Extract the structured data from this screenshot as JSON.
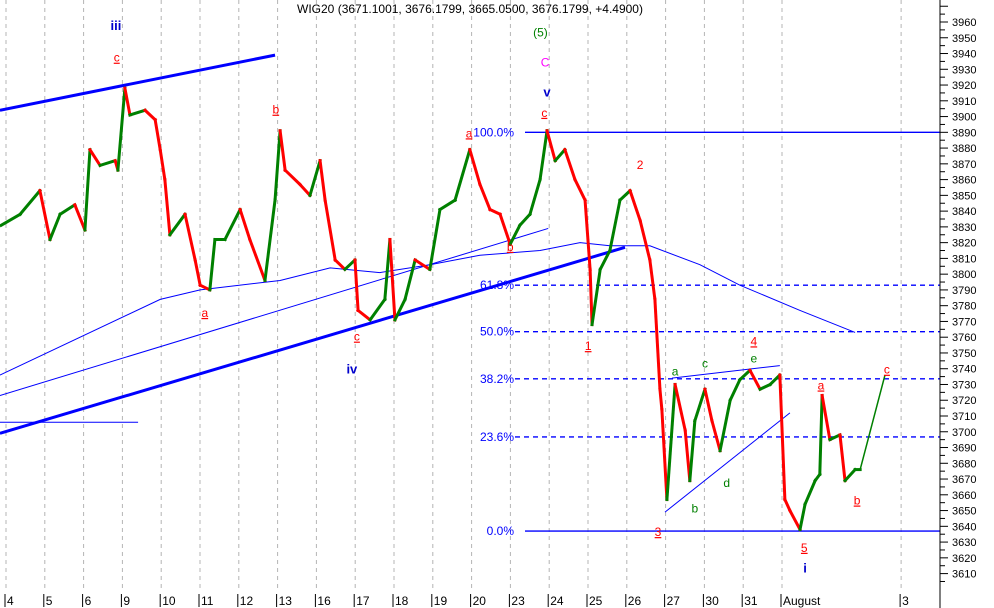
{
  "chart_data": {
    "type": "line",
    "title": "WIG20 (3671.1001, 3676.1799, 3665.0500, 3676.1799, +4.4900)",
    "x_tick_labels": [
      "4",
      "5",
      "6",
      "9",
      "10",
      "11",
      "12",
      "13",
      "16",
      "17",
      "18",
      "19",
      "20",
      "23",
      "24",
      "25",
      "26",
      "27",
      "30",
      "31",
      "August",
      "3"
    ],
    "x_tick_positions": [
      0,
      1,
      2,
      3,
      4,
      5,
      6,
      7,
      8,
      9,
      10,
      11,
      12,
      13,
      14,
      15,
      16,
      17,
      18,
      19,
      20,
      23.07
    ],
    "ylim": [
      3605,
      3975
    ],
    "y_ticks": [
      3610,
      3620,
      3630,
      3640,
      3650,
      3660,
      3670,
      3680,
      3690,
      3700,
      3710,
      3720,
      3730,
      3740,
      3750,
      3760,
      3770,
      3780,
      3790,
      3800,
      3810,
      3820,
      3830,
      3840,
      3850,
      3860,
      3870,
      3880,
      3890,
      3900,
      3910,
      3920,
      3930,
      3940,
      3950,
      3960
    ],
    "grid": "vertical dashed",
    "colors": {
      "up": "#008000",
      "down": "#ff0000",
      "lines": "#0000ff",
      "grid": "#b4b4b4"
    },
    "price": [
      [
        -0.1,
        3831
      ],
      [
        0.39,
        3838
      ],
      [
        0.9,
        3853
      ],
      [
        1.16,
        3822
      ],
      [
        1.42,
        3838
      ],
      [
        1.8,
        3844
      ],
      [
        2.06,
        3828
      ],
      [
        2.19,
        3879
      ],
      [
        2.45,
        3869
      ],
      [
        2.84,
        3872
      ],
      [
        2.91,
        3866
      ],
      [
        3.09,
        3918
      ],
      [
        3.22,
        3901
      ],
      [
        3.61,
        3904
      ],
      [
        3.87,
        3898
      ],
      [
        4.0,
        3879
      ],
      [
        4.12,
        3860
      ],
      [
        4.25,
        3825
      ],
      [
        4.64,
        3838
      ],
      [
        4.9,
        3809
      ],
      [
        5.03,
        3793
      ],
      [
        5.28,
        3790
      ],
      [
        5.41,
        3822
      ],
      [
        5.67,
        3822
      ],
      [
        6.06,
        3841
      ],
      [
        6.31,
        3822
      ],
      [
        6.7,
        3796
      ],
      [
        6.96,
        3847
      ],
      [
        7.09,
        3891
      ],
      [
        7.22,
        3866
      ],
      [
        7.6,
        3857
      ],
      [
        7.86,
        3850
      ],
      [
        8.12,
        3872
      ],
      [
        8.25,
        3847
      ],
      [
        8.51,
        3809
      ],
      [
        8.76,
        3803
      ],
      [
        9.02,
        3809
      ],
      [
        9.1,
        3777
      ],
      [
        9.41,
        3771
      ],
      [
        9.79,
        3784
      ],
      [
        9.92,
        3822
      ],
      [
        10.05,
        3771
      ],
      [
        10.31,
        3784
      ],
      [
        10.57,
        3809
      ],
      [
        10.95,
        3803
      ],
      [
        11.21,
        3841
      ],
      [
        11.6,
        3847
      ],
      [
        11.98,
        3879
      ],
      [
        12.24,
        3857
      ],
      [
        12.5,
        3841
      ],
      [
        12.76,
        3838
      ],
      [
        13.02,
        3819
      ],
      [
        13.27,
        3831
      ],
      [
        13.53,
        3838
      ],
      [
        13.79,
        3860
      ],
      [
        13.97,
        3891
      ],
      [
        14.18,
        3872
      ],
      [
        14.43,
        3879
      ],
      [
        14.69,
        3860
      ],
      [
        14.95,
        3847
      ],
      [
        15.08,
        3803
      ],
      [
        15.13,
        3768
      ],
      [
        15.34,
        3803
      ],
      [
        15.59,
        3815
      ],
      [
        15.85,
        3847
      ],
      [
        16.11,
        3853
      ],
      [
        16.37,
        3834
      ],
      [
        16.62,
        3809
      ],
      [
        16.75,
        3784
      ],
      [
        16.88,
        3727
      ],
      [
        16.93,
        3714
      ],
      [
        17.06,
        3657
      ],
      [
        17.27,
        3730
      ],
      [
        17.53,
        3701
      ],
      [
        17.65,
        3669
      ],
      [
        17.78,
        3707
      ],
      [
        18.04,
        3727
      ],
      [
        18.22,
        3707
      ],
      [
        18.43,
        3688
      ],
      [
        18.69,
        3720
      ],
      [
        18.94,
        3733
      ],
      [
        19.2,
        3739
      ],
      [
        19.46,
        3727
      ],
      [
        19.72,
        3730
      ],
      [
        19.97,
        3736
      ],
      [
        20.1,
        3657
      ],
      [
        20.23,
        3650
      ],
      [
        20.49,
        3638
      ],
      [
        20.62,
        3654
      ],
      [
        20.88,
        3669
      ],
      [
        21.0,
        3673
      ],
      [
        21.06,
        3723
      ],
      [
        21.26,
        3695
      ],
      [
        21.52,
        3698
      ],
      [
        21.65,
        3669
      ],
      [
        21.91,
        3676
      ],
      [
        22.04,
        3676
      ]
    ],
    "projection": [
      [
        22.04,
        3676
      ],
      [
        22.68,
        3736
      ]
    ],
    "moving_average": [
      [
        -0.13,
        3736
      ],
      [
        4.0,
        3784
      ],
      [
        5.03,
        3790
      ],
      [
        7.09,
        3796
      ],
      [
        8.38,
        3804
      ],
      [
        9.66,
        3801
      ],
      [
        10.95,
        3806
      ],
      [
        12.24,
        3812
      ],
      [
        13.79,
        3815
      ],
      [
        14.82,
        3820
      ],
      [
        15.59,
        3818
      ],
      [
        16.62,
        3818
      ],
      [
        17.91,
        3806
      ],
      [
        18.94,
        3793
      ],
      [
        20.49,
        3777
      ],
      [
        21.91,
        3763
      ]
    ],
    "trendlines": [
      {
        "from": [
          -0.13,
          3904
        ],
        "to": [
          6.96,
          3939
        ],
        "weight": "thick"
      },
      {
        "from": [
          -0.13,
          3699
        ],
        "to": [
          15.98,
          3817
        ],
        "weight": "thick"
      },
      {
        "from": [
          -0.13,
          3723
        ],
        "to": [
          14.0,
          3829
        ],
        "weight": "thin"
      },
      {
        "from": [
          -0.13,
          3706
        ],
        "to": [
          3.43,
          3706
        ],
        "weight": "thin"
      },
      {
        "from": [
          17.19,
          3734
        ],
        "to": [
          19.97,
          3742
        ],
        "weight": "thin"
      },
      {
        "from": [
          17.01,
          3649
        ],
        "to": [
          20.23,
          3712
        ],
        "weight": "thin"
      }
    ],
    "fibonacci": {
      "high": 3890,
      "low": 3637,
      "levels": [
        {
          "label": "100.0%",
          "value": 3890,
          "style": "solid"
        },
        {
          "label": "61.8%",
          "value": 3793,
          "style": "dashed"
        },
        {
          "label": "50.0%",
          "value": 3763.5,
          "style": "dashed"
        },
        {
          "label": "38.2%",
          "value": 3733.6,
          "style": "dashed"
        },
        {
          "label": "23.6%",
          "value": 3696.7,
          "style": "dashed"
        },
        {
          "label": "0.0%",
          "value": 3637,
          "style": "solid"
        }
      ]
    },
    "annotations": [
      {
        "text": "iii",
        "x": 2.86,
        "y": 3958,
        "color": "#0000cc",
        "bold": true,
        "underline": false
      },
      {
        "text": "c",
        "x": 2.88,
        "y": 3938,
        "color": "#ff0000",
        "bold": false,
        "underline": true
      },
      {
        "text": "b",
        "x": 6.98,
        "y": 3905,
        "color": "#ff0000",
        "bold": false,
        "underline": true
      },
      {
        "text": "a",
        "x": 5.15,
        "y": 3776,
        "color": "#ff0000",
        "bold": false,
        "underline": true
      },
      {
        "text": "c",
        "x": 9.07,
        "y": 3761,
        "color": "#ff0000",
        "bold": false,
        "underline": true
      },
      {
        "text": "iv",
        "x": 8.94,
        "y": 3740,
        "color": "#0000cc",
        "bold": true,
        "underline": false
      },
      {
        "text": "a",
        "x": 11.96,
        "y": 3890,
        "color": "#ff0000",
        "bold": false,
        "underline": true
      },
      {
        "text": "b",
        "x": 13.02,
        "y": 3818,
        "color": "#ff0000",
        "bold": false,
        "underline": true
      },
      {
        "text": "(5)",
        "x": 13.8,
        "y": 3954,
        "color": "#008000",
        "bold": false,
        "underline": false
      },
      {
        "text": "C",
        "x": 13.92,
        "y": 3935,
        "color": "#ff00ff",
        "bold": false,
        "underline": false
      },
      {
        "text": "v",
        "x": 13.97,
        "y": 3916,
        "color": "#0000cc",
        "bold": true,
        "underline": false
      },
      {
        "text": "c",
        "x": 13.9,
        "y": 3903,
        "color": "#ff0000",
        "bold": false,
        "underline": true
      },
      {
        "text": "2",
        "x": 16.37,
        "y": 3870,
        "color": "#ff0000",
        "bold": false,
        "underline": false
      },
      {
        "text": "1",
        "x": 15.03,
        "y": 3755,
        "color": "#ff0000",
        "bold": false,
        "underline": true
      },
      {
        "text": "3",
        "x": 16.83,
        "y": 3637,
        "color": "#ff0000",
        "bold": false,
        "underline": true
      },
      {
        "text": "a",
        "x": 17.27,
        "y": 3739,
        "color": "#008000",
        "bold": false,
        "underline": false
      },
      {
        "text": "c",
        "x": 18.04,
        "y": 3744,
        "color": "#008000",
        "bold": false,
        "underline": false
      },
      {
        "text": "4",
        "x": 19.3,
        "y": 3758,
        "color": "#ff0000",
        "bold": false,
        "underline": true
      },
      {
        "text": "e",
        "x": 19.3,
        "y": 3747,
        "color": "#008000",
        "bold": false,
        "underline": false
      },
      {
        "text": "b",
        "x": 17.78,
        "y": 3652,
        "color": "#008000",
        "bold": false,
        "underline": false
      },
      {
        "text": "d",
        "x": 18.6,
        "y": 3668,
        "color": "#008000",
        "bold": false,
        "underline": false
      },
      {
        "text": "5",
        "x": 20.6,
        "y": 3627,
        "color": "#ff0000",
        "bold": false,
        "underline": true
      },
      {
        "text": "i",
        "x": 20.62,
        "y": 3614,
        "color": "#0000cc",
        "bold": true,
        "underline": false
      },
      {
        "text": "a",
        "x": 21.03,
        "y": 3730,
        "color": "#ff0000",
        "bold": false,
        "underline": true
      },
      {
        "text": "b",
        "x": 21.96,
        "y": 3657,
        "color": "#ff0000",
        "bold": false,
        "underline": true
      },
      {
        "text": "c",
        "x": 22.73,
        "y": 3740,
        "color": "#ff0000",
        "bold": false,
        "underline": true
      }
    ]
  }
}
